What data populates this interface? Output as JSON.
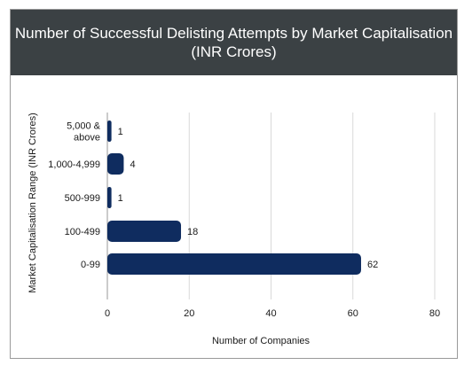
{
  "chart_data": {
    "type": "bar",
    "orientation": "horizontal",
    "title": "Number of Successful Delisting Attempts by Market Capitalisation",
    "subtitle": "(INR Crores)",
    "xlabel": "Number of Companies",
    "ylabel": "Market Capitalisation Range (INR Crores)",
    "categories": [
      [
        "5,000 &",
        "above"
      ],
      [
        "1,000-4,999"
      ],
      [
        "500-999"
      ],
      [
        "100-499"
      ],
      [
        "0-99"
      ]
    ],
    "values": [
      1,
      4,
      1,
      18,
      62
    ],
    "value_labels": [
      "1",
      "4",
      "1",
      "18",
      "62"
    ],
    "xlim": [
      0,
      80
    ],
    "xticks": [
      "0",
      "20",
      "40",
      "60",
      "80"
    ],
    "grid": true,
    "bar_color": "#0f2c5f",
    "header_color": "#3b4144"
  }
}
